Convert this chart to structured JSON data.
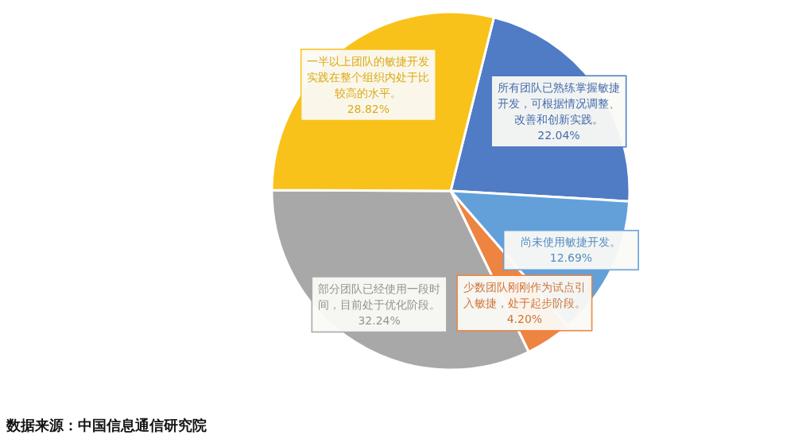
{
  "chart_data": {
    "type": "pie",
    "categories": [
      "所有团队已熟练掌握敏捷开发，可根据情况调整、改善和创新实践。",
      "尚未使用敏捷开发。",
      "少数团队刚刚作为试点引入敏捷，处于起步阶段。",
      "部分团队已经使用一段时间，目前处于优化阶段。",
      "一半以上团队的敏捷开发实践在整个组织内处于比较高的水平。"
    ],
    "values": [
      22.04,
      12.69,
      4.2,
      32.24,
      28.82
    ],
    "colors": [
      "#4f7cc4",
      "#63a0da",
      "#ee8441",
      "#a8a8a8",
      "#f9c21a"
    ],
    "value_labels": [
      "22.04%",
      "12.69%",
      "4.20%",
      "32.24%",
      "28.82%"
    ],
    "annotations": [
      "数据来源：中国信息通信研究院"
    ]
  }
}
